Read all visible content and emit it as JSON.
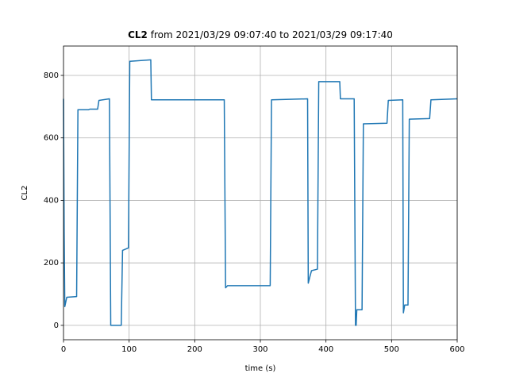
{
  "chart_data": {
    "type": "line",
    "title_bold": "CL2",
    "title": "from 2021/03/29 09:07:40 to 2021/03/29 09:17:40",
    "x_label": "time (s)",
    "y_label": "CL2",
    "x": [
      0,
      1,
      2,
      5,
      20,
      22,
      38,
      40,
      52,
      54,
      70,
      72,
      88,
      90,
      99,
      101,
      133,
      134,
      245,
      247,
      250,
      315,
      317,
      372,
      373,
      376,
      378,
      387,
      389,
      421,
      422,
      443,
      445,
      446,
      447,
      455,
      457,
      493,
      495,
      517,
      518,
      520,
      525,
      527,
      558,
      560,
      600
    ],
    "series": [
      {
        "name": "CL2",
        "color": "#1f77b4",
        "values": [
          725,
          300,
          60,
          90,
          92,
          690,
          690,
          692,
          692,
          720,
          725,
          0,
          0,
          240,
          248,
          845,
          850,
          722,
          722,
          120,
          127,
          127,
          722,
          725,
          135,
          160,
          175,
          180,
          780,
          780,
          725,
          725,
          0,
          0,
          50,
          50,
          645,
          647,
          720,
          722,
          40,
          65,
          65,
          660,
          662,
          722,
          725
        ]
      }
    ],
    "xlim": [
      0,
      600
    ],
    "ylim": [
      -46,
      894
    ],
    "xticks": [
      0,
      100,
      200,
      300,
      400,
      500,
      600
    ],
    "yticks": [
      0,
      200,
      400,
      600,
      800
    ],
    "grid": true
  }
}
